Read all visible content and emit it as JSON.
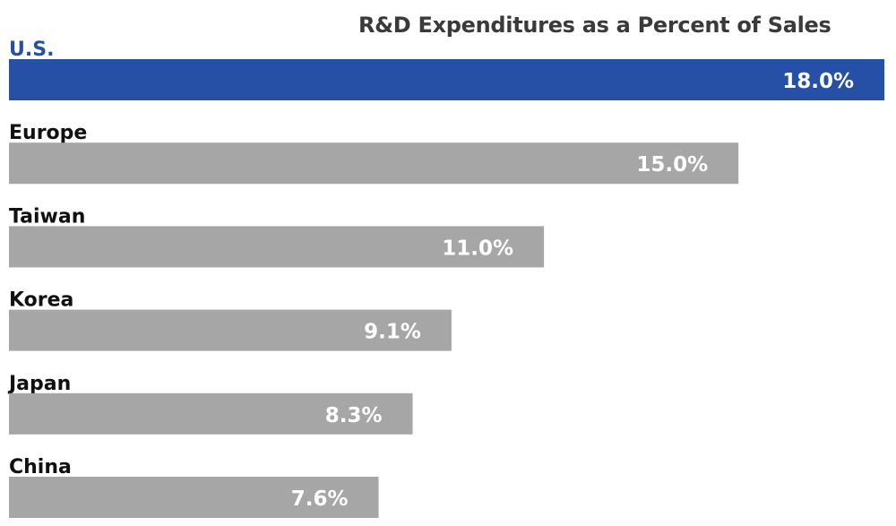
{
  "chart_data": {
    "type": "bar",
    "orientation": "horizontal",
    "title": "R&D Expenditures as a Percent of Sales",
    "xlabel": "",
    "ylabel": "",
    "xlim": [
      0,
      18
    ],
    "grid": false,
    "legend": "none",
    "categories": [
      "U.S.",
      "Europe",
      "Taiwan",
      "Korea",
      "Japan",
      "China"
    ],
    "values": [
      18.0,
      15.0,
      11.0,
      9.1,
      8.3,
      7.6
    ],
    "value_labels": [
      "18.0%",
      "15.0%",
      "11.0%",
      "9.1%",
      "8.3%",
      "7.6%"
    ],
    "highlight_category": "U.S."
  },
  "colors": {
    "highlight_bar": "#2550a6",
    "highlight_label": "#2550a6",
    "default_bar": "#a6a6a6",
    "default_label": "#111111",
    "title": "#3a3a3a"
  }
}
